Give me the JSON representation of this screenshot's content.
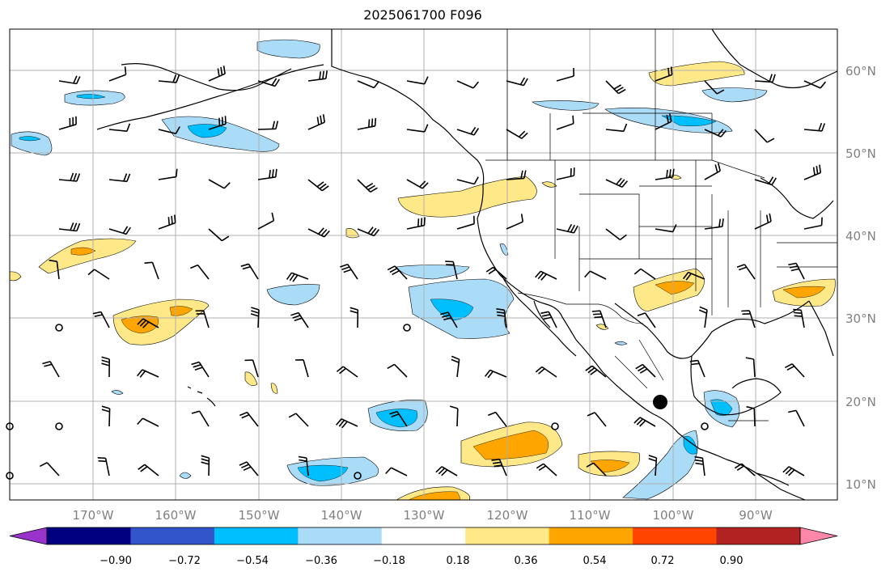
{
  "title": "2025061700 F096",
  "lat_labels": [
    "60°N",
    "50°N",
    "40°N",
    "30°N",
    "20°N",
    "10°N"
  ],
  "lon_labels": [
    "170°W",
    "160°W",
    "150°W",
    "140°W",
    "130°W",
    "120°W",
    "110°W",
    "100°W",
    "90°W"
  ],
  "colorbar": {
    "ticks": [
      "−0.90",
      "−0.72",
      "−0.54",
      "−0.36",
      "−0.18",
      "0.18",
      "0.36",
      "0.54",
      "0.72",
      "0.90"
    ],
    "colors": [
      "#9933cc",
      "#000080",
      "#3355cc",
      "#00bfff",
      "#aadcf8",
      "#ffffff",
      "#ffe888",
      "#ffa500",
      "#ff4400",
      "#b22222",
      "#ff88aa"
    ]
  },
  "colors": {
    "light_blue": "#aadcf8",
    "blue": "#00bfff",
    "light_yellow": "#ffe888",
    "orange": "#ffa500",
    "grid": "#b0b0b0",
    "coast": "#000000"
  }
}
